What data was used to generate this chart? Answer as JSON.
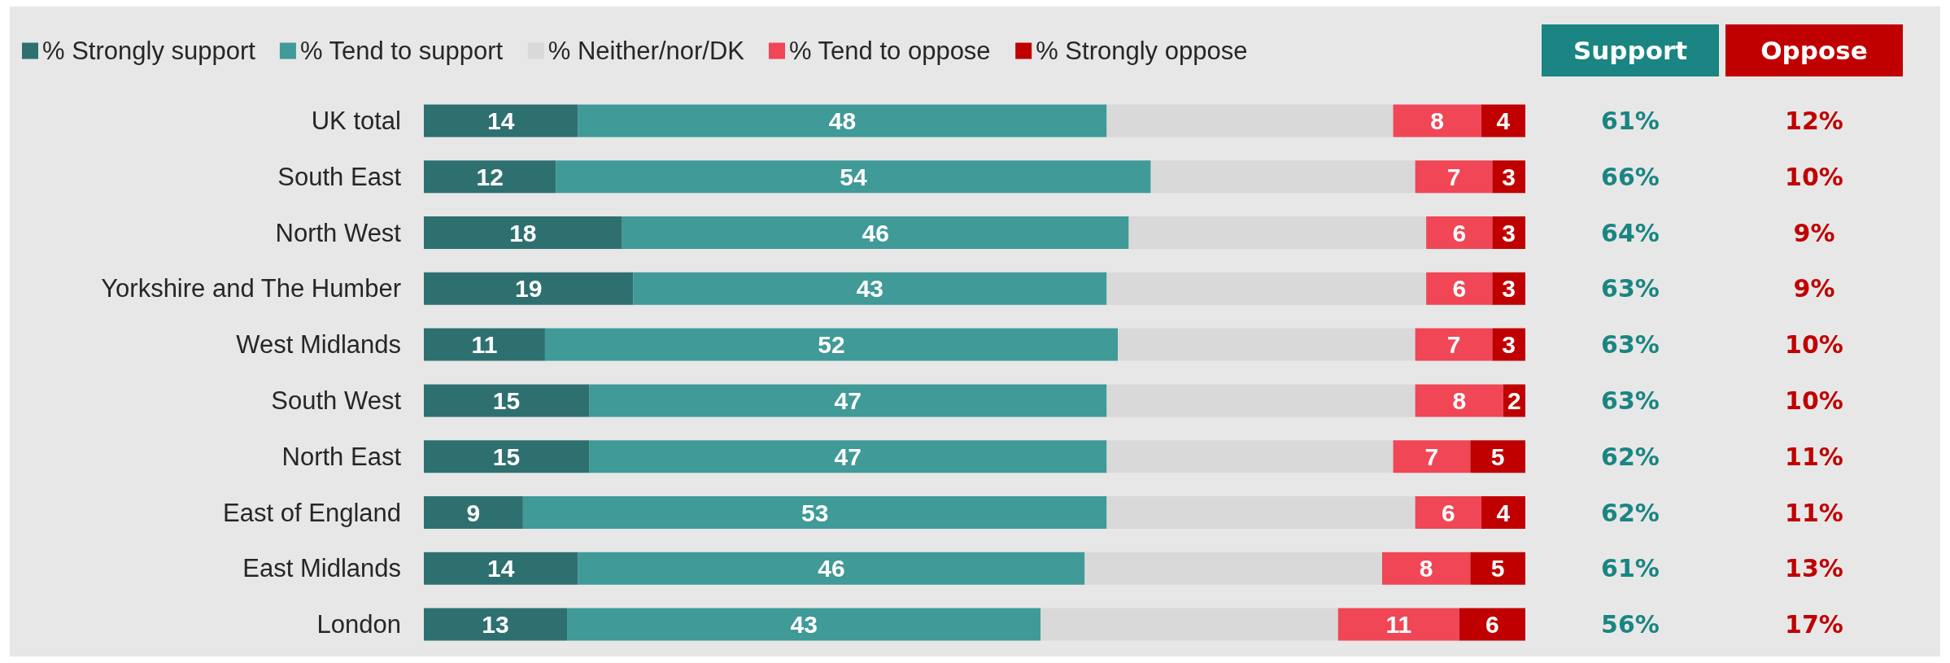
{
  "chart_data": {
    "type": "bar",
    "orientation": "horizontal",
    "stacked": true,
    "legend": "top",
    "tick_labels": "y",
    "categories": [
      "UK total",
      "South East",
      "North West",
      "Yorkshire and The Humber",
      "West Midlands",
      "South West",
      "North East",
      "East of England",
      "East Midlands",
      "London"
    ],
    "xlim": [
      0,
      100
    ],
    "series": [
      {
        "name": "% Strongly support",
        "color": "#2e7070",
        "values": [
          14,
          12,
          18,
          19,
          11,
          15,
          15,
          9,
          14,
          13
        ],
        "value_labels": [
          "14",
          "12",
          "18",
          "19",
          "11",
          "15",
          "15",
          "9",
          "14",
          "13"
        ]
      },
      {
        "name": "% Tend to support",
        "color": "#3f9a98",
        "values": [
          48,
          54,
          46,
          43,
          52,
          47,
          47,
          53,
          46,
          43
        ],
        "value_labels": [
          "48",
          "54",
          "46",
          "43",
          "52",
          "47",
          "47",
          "53",
          "46",
          "43"
        ]
      },
      {
        "name": "% Neither/nor/DK",
        "color": "#d9d9d9",
        "values": [
          26,
          24,
          27,
          29,
          27,
          28,
          26,
          28,
          27,
          27
        ],
        "value_labels": [
          null,
          null,
          null,
          null,
          null,
          null,
          null,
          null,
          null,
          null
        ]
      },
      {
        "name": "% Tend to oppose",
        "color": "#f04656",
        "values": [
          8,
          7,
          6,
          6,
          7,
          8,
          7,
          6,
          8,
          11
        ],
        "value_labels": [
          "8",
          "7",
          "6",
          "6",
          "7",
          "8",
          "7",
          "6",
          "8",
          "11"
        ]
      },
      {
        "name": "% Strongly oppose",
        "color": "#c00000",
        "values": [
          4,
          3,
          3,
          3,
          3,
          2,
          5,
          4,
          5,
          6
        ],
        "value_labels": [
          "4",
          "3",
          "3",
          "3",
          "3",
          "2",
          "5",
          "4",
          "5",
          "6"
        ]
      }
    ],
    "annotations": [
      "Support",
      "Oppose",
      "61%",
      "12%",
      "66%",
      "10%",
      "64%",
      "9%",
      "63%",
      "9%",
      "63%",
      "10%",
      "63%",
      "10%",
      "62%",
      "11%",
      "62%",
      "11%",
      "61%",
      "13%",
      "56%",
      "17%"
    ]
  }
}
